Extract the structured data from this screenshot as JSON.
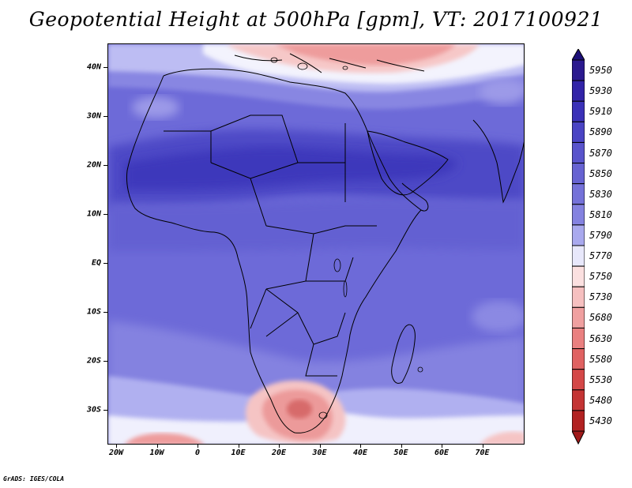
{
  "title": "Geopotential Height at 500hPa [gpm], VT: 2017100921",
  "lat_labels": [
    "40N",
    "30N",
    "20N",
    "10N",
    "EQ",
    "10S",
    "20S",
    "30S"
  ],
  "lon_labels": [
    "20W",
    "10W",
    "0",
    "10E",
    "20E",
    "30E",
    "40E",
    "50E",
    "60E",
    "70E"
  ],
  "colorbar": {
    "levels": [
      "5950",
      "5930",
      "5910",
      "5890",
      "5870",
      "5850",
      "5830",
      "5810",
      "5790",
      "5770",
      "5750",
      "5730",
      "5680",
      "5630",
      "5580",
      "5530",
      "5480",
      "5430"
    ],
    "colors": [
      "#2b1a8f",
      "#3224a8",
      "#3b31b8",
      "#4a44c4",
      "#5954cc",
      "#6763d2",
      "#7572d9",
      "#8482e0",
      "#a9a9ee",
      "#e8e8fb",
      "#fbe0e0",
      "#f6c0c0",
      "#f0a0a0",
      "#ea8080",
      "#e06262",
      "#d44848",
      "#c43434",
      "#b22222"
    ],
    "top_color": "#1c0f78",
    "bottom_color": "#a01a1a"
  },
  "credit": "GrADS: IGES/COLA",
  "icons": [
    "colorbar-triangle-up-icon",
    "colorbar-triangle-down-icon"
  ]
}
